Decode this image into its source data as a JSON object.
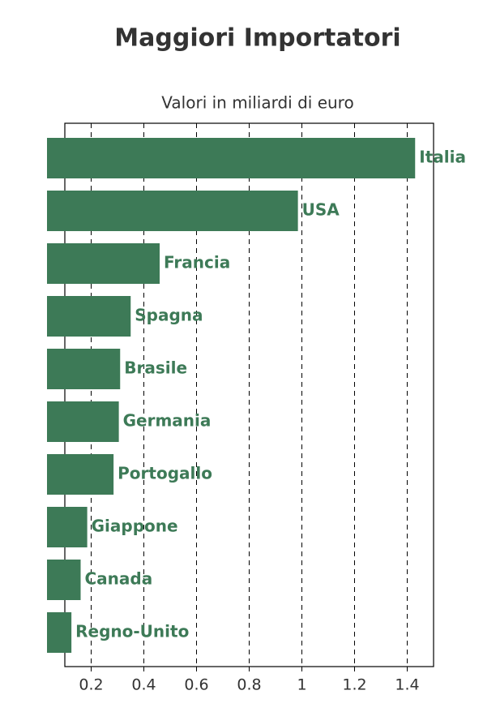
{
  "chart_data": {
    "type": "barh",
    "title": "Maggiori Importatori",
    "subtitle": "Valori in miliardi di euro",
    "categories": [
      "Italia",
      "USA",
      "Francia",
      "Spagna",
      "Brasile",
      "Germania",
      "Portogallo",
      "Giappone",
      "Canada",
      "Regno-Unito"
    ],
    "values": [
      1.43,
      0.985,
      0.46,
      0.35,
      0.31,
      0.305,
      0.285,
      0.185,
      0.16,
      0.125
    ],
    "color": "#3d7a57",
    "xlim": [
      0.1,
      1.5
    ],
    "xticks": [
      0.2,
      0.4,
      0.6,
      0.8,
      1.0,
      1.2,
      1.4
    ],
    "grid": true
  }
}
